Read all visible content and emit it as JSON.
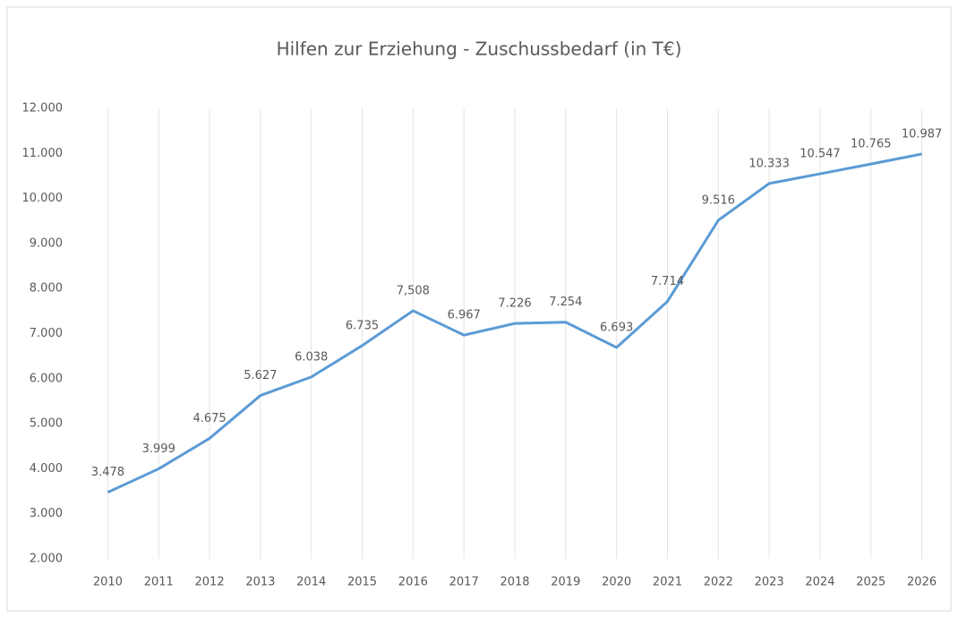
{
  "chart_data": {
    "type": "line",
    "title": "Hilfen zur Erziehung - Zuschussbedarf (in T€)",
    "categories": [
      "2010",
      "2011",
      "2012",
      "2013",
      "2014",
      "2015",
      "2016",
      "2017",
      "2018",
      "2019",
      "2020",
      "2021",
      "2022",
      "2023",
      "2024",
      "2025",
      "2026"
    ],
    "series": [
      {
        "name": "Zuschussbedarf",
        "color": "#5b9bd5",
        "values": [
          3478,
          3999,
          4675,
          5627,
          6038,
          6735,
          7508,
          6967,
          7226,
          7254,
          6693,
          7714,
          9516,
          10333,
          10547,
          10765,
          10987
        ],
        "value_labels": [
          "3.478",
          "3.999",
          "4.675",
          "5.627",
          "6.038",
          "6.735",
          "7,508",
          "6.967",
          "7.226",
          "7.254",
          "6.693",
          "7.714",
          "9.516",
          "10.333",
          "10.547",
          "10.765",
          "10.987"
        ]
      }
    ],
    "ylim": [
      2000,
      12000
    ],
    "yticks": [
      {
        "value": 2000,
        "label": "2.000"
      },
      {
        "value": 3000,
        "label": "3.000"
      },
      {
        "value": 4000,
        "label": "4.000"
      },
      {
        "value": 5000,
        "label": "5.000"
      },
      {
        "value": 6000,
        "label": "6.000"
      },
      {
        "value": 7000,
        "label": "7.000"
      },
      {
        "value": 8000,
        "label": "8.000"
      },
      {
        "value": 9000,
        "label": "9.000"
      },
      {
        "value": 10000,
        "label": "10.000"
      },
      {
        "value": 11000,
        "label": "11.000"
      },
      {
        "value": 12000,
        "label": "12.000"
      }
    ],
    "grid": true
  }
}
